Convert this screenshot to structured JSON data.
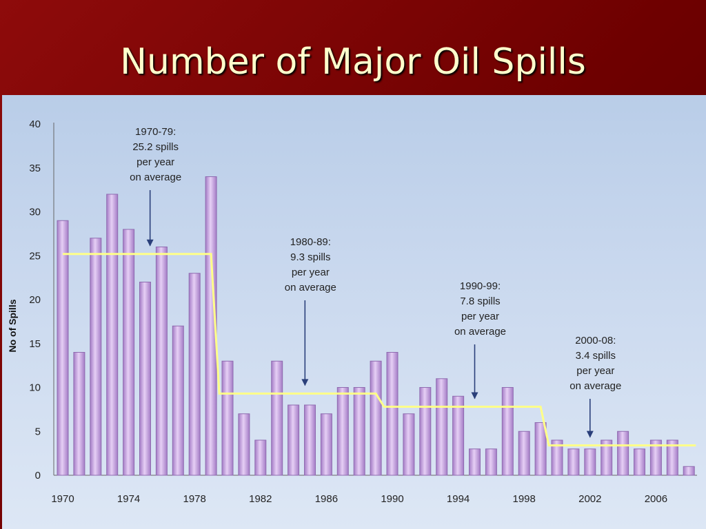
{
  "slide": {
    "title": "Number of Major Oil Spills"
  },
  "chart_data": {
    "type": "bar",
    "ylabel": "No of Spills",
    "ylim": [
      0,
      40
    ],
    "yticks": [
      0,
      5,
      10,
      15,
      20,
      25,
      30,
      35,
      40
    ],
    "x": [
      1970,
      1971,
      1972,
      1973,
      1974,
      1975,
      1976,
      1977,
      1978,
      1979,
      1980,
      1981,
      1982,
      1983,
      1984,
      1985,
      1986,
      1987,
      1988,
      1989,
      1990,
      1991,
      1992,
      1993,
      1994,
      1995,
      1996,
      1997,
      1998,
      1999,
      2000,
      2001,
      2002,
      2003,
      2004,
      2005,
      2006,
      2007,
      2008
    ],
    "xtick_labels": [
      "1970",
      "1974",
      "1978",
      "1982",
      "1986",
      "1990",
      "1994",
      "1998",
      "2002",
      "2006"
    ],
    "values": [
      29,
      14,
      27,
      32,
      28,
      22,
      26,
      17,
      23,
      34,
      13,
      7,
      4,
      13,
      8,
      8,
      7,
      10,
      10,
      13,
      14,
      7,
      10,
      11,
      9,
      3,
      3,
      10,
      5,
      6,
      4,
      3,
      3,
      4,
      5,
      3,
      4,
      4,
      1
    ],
    "averages": [
      {
        "period": "1970-79",
        "value": 25.2,
        "start": 1970,
        "end": 1979
      },
      {
        "period": "1980-89",
        "value": 9.3,
        "start": 1980,
        "end": 1989
      },
      {
        "period": "1990-99",
        "value": 7.8,
        "start": 1990,
        "end": 1999
      },
      {
        "period": "2000-08",
        "value": 3.4,
        "start": 2000,
        "end": 2008
      }
    ],
    "annotations": [
      {
        "lines": [
          "1970-79:",
          "25.2 spills",
          "per year",
          "on average"
        ],
        "year": 1975.3
      },
      {
        "lines": [
          "1980-89:",
          "9.3 spills",
          "per year",
          "on average"
        ],
        "year": 1984.7
      },
      {
        "lines": [
          "1990-99:",
          "7.8 spills",
          "per year",
          "on average"
        ],
        "year": 1995.0
      },
      {
        "lines": [
          "2000-08:",
          "3.4 spills",
          "per year",
          "on average"
        ],
        "year": 2002.0
      }
    ],
    "colors": {
      "bar": "#c9a6e0",
      "bar_edge": "#8f6bb0",
      "average_line": "#ffff88",
      "arrow": "#2a3f7a"
    }
  }
}
